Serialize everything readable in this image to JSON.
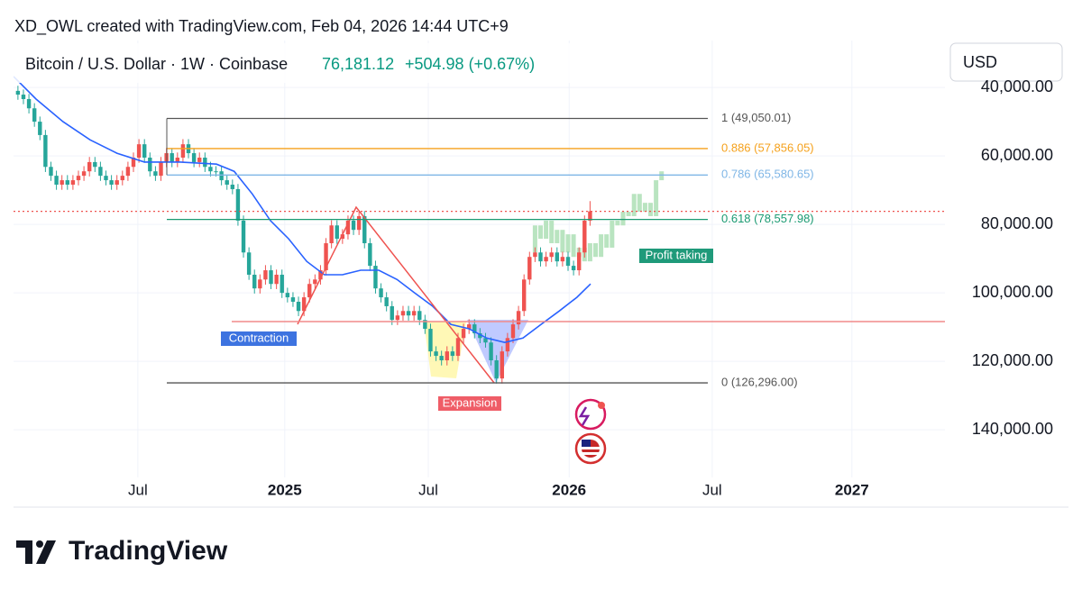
{
  "header": {
    "credit": "XD_OWL created with TradingView.com, Feb 04, 2026 14:44 UTC+9",
    "symbol": "Bitcoin / U.S. Dollar · 1W · Coinbase",
    "price": {
      "value": 76181.12,
      "label": "76,181.12"
    },
    "change": "+504.98 (+0.67%)",
    "currency": "USD"
  },
  "footer": {
    "brand": "TradingView"
  },
  "chart_data": {
    "type": "candlestick",
    "y_inverted": true,
    "grid": true,
    "ylim": [
      26300,
      153900
    ],
    "yticks": [
      {
        "value": 40000,
        "label": "40,000.00"
      },
      {
        "value": 60000,
        "label": "60,000.00"
      },
      {
        "value": 80000,
        "label": "80,000.00"
      },
      {
        "value": 100000,
        "label": "100,000.00"
      },
      {
        "value": 120000,
        "label": "120,000.00"
      },
      {
        "value": 140000,
        "label": "140,000.00"
      }
    ],
    "xlim": [
      -0.8,
      167.2
    ],
    "xticks": [
      {
        "value": 21.8,
        "label": "Jul"
      },
      {
        "value": 48.5,
        "label": "2025"
      },
      {
        "value": 74.6,
        "label": "Jul"
      },
      {
        "value": 100.2,
        "label": "2026"
      },
      {
        "value": 126.2,
        "label": "Jul"
      },
      {
        "value": 151.6,
        "label": "2027"
      }
    ],
    "up_color": "#26a69a",
    "down_color": "#ef5350",
    "open": [
      41000,
      42100,
      43400,
      46100,
      50000,
      53900,
      63200,
      65800,
      68400,
      67100,
      68400,
      67100,
      65800,
      64500,
      61800,
      63200,
      65800,
      67100,
      68400,
      67100,
      65800,
      63200,
      60500,
      56600,
      60500,
      64500,
      65800,
      61800,
      59200,
      61800,
      60500,
      56600,
      59200,
      61800,
      60500,
      63200,
      64500,
      64500,
      67100,
      68400,
      69700,
      78900,
      88200,
      94700,
      98700,
      96100,
      93400,
      97400,
      94700,
      100000,
      101300,
      102600,
      105300,
      101300,
      97400,
      96100,
      93400,
      85500,
      80300,
      84200,
      82900,
      78900,
      81600,
      77600,
      85500,
      92100,
      98700,
      101300,
      103900,
      107900,
      106600,
      105300,
      106600,
      105300,
      107900,
      110500,
      117100,
      118400,
      119700,
      117100,
      118400,
      113200,
      110500,
      109200,
      111800,
      113200,
      114500,
      119700,
      125000,
      117100,
      113200,
      109200,
      105300,
      96100,
      89500,
      88200,
      90800,
      89500,
      88200,
      90800,
      89500,
      92100,
      93400,
      88200,
      78900
    ],
    "high": [
      43600,
      44900,
      47600,
      51500,
      55400,
      64700,
      67300,
      69900,
      69900,
      69900,
      69900,
      68600,
      67300,
      66000,
      64700,
      67300,
      68600,
      69900,
      69900,
      68600,
      67300,
      64700,
      62000,
      62000,
      66000,
      67300,
      67300,
      63300,
      63300,
      63300,
      62000,
      60700,
      63300,
      63300,
      64700,
      66000,
      66000,
      68600,
      69900,
      71200,
      80400,
      89700,
      96200,
      100200,
      100200,
      97600,
      98900,
      98900,
      101500,
      102800,
      104100,
      106800,
      106800,
      102800,
      98900,
      97600,
      94900,
      87000,
      85700,
      85700,
      84400,
      83100,
      83100,
      87000,
      93600,
      100200,
      102800,
      105400,
      109400,
      109400,
      108100,
      108100,
      108100,
      109400,
      112000,
      118600,
      119900,
      121200,
      121200,
      119900,
      119900,
      114700,
      112000,
      113300,
      114700,
      116000,
      121200,
      126500,
      126500,
      118600,
      114700,
      110700,
      106800,
      97600,
      91000,
      92300,
      92300,
      91000,
      92300,
      92300,
      93600,
      94900,
      94900,
      89700,
      80400
    ],
    "low": [
      39500,
      40600,
      41900,
      44600,
      48500,
      52400,
      61700,
      64300,
      65600,
      65600,
      65600,
      64300,
      63000,
      60300,
      60300,
      61700,
      64300,
      65600,
      65600,
      64300,
      61700,
      59000,
      55100,
      55100,
      59000,
      63000,
      60300,
      57700,
      57700,
      59000,
      55100,
      55100,
      57700,
      59000,
      59000,
      61700,
      63000,
      63000,
      65600,
      66900,
      68200,
      77400,
      86700,
      93200,
      94600,
      91900,
      91900,
      93200,
      93200,
      98500,
      99800,
      101100,
      99800,
      95900,
      94600,
      91900,
      84000,
      78800,
      78800,
      81400,
      77400,
      77400,
      76100,
      76100,
      84000,
      90600,
      97200,
      99800,
      102400,
      105100,
      103800,
      103800,
      103800,
      103800,
      106400,
      109000,
      115600,
      116900,
      115600,
      115600,
      111700,
      109000,
      107700,
      107700,
      110300,
      111700,
      113000,
      118200,
      115600,
      111700,
      107700,
      103800,
      94600,
      88000,
      86700,
      86700,
      88000,
      86700,
      86700,
      88000,
      88000,
      90600,
      86700,
      77400,
      73200
    ],
    "close": [
      42100,
      43400,
      46100,
      50000,
      53900,
      63200,
      65800,
      68400,
      67100,
      68400,
      67100,
      65800,
      64500,
      61800,
      63200,
      65800,
      67100,
      68400,
      67100,
      65800,
      63200,
      60500,
      56600,
      60500,
      64500,
      65800,
      61800,
      59200,
      61800,
      60500,
      56600,
      59200,
      61800,
      60500,
      63200,
      64500,
      64500,
      67100,
      68400,
      69700,
      78900,
      88200,
      94700,
      98700,
      96100,
      93400,
      97400,
      94700,
      100000,
      101300,
      102600,
      105300,
      101300,
      97400,
      96100,
      93400,
      85500,
      80300,
      84200,
      82900,
      78900,
      81600,
      77600,
      85500,
      92100,
      98700,
      101300,
      103900,
      107900,
      106600,
      105300,
      106600,
      105300,
      107900,
      110500,
      117100,
      118400,
      119700,
      117100,
      118400,
      113200,
      110500,
      109200,
      111800,
      113200,
      114500,
      119700,
      125000,
      117100,
      113200,
      109200,
      105300,
      96100,
      89500,
      88200,
      90800,
      89500,
      88200,
      90800,
      89500,
      92100,
      93400,
      88200,
      78900,
      76181.12
    ],
    "projection": {
      "color": "#b9e4c0",
      "x": [
        94,
        95,
        96,
        97,
        98,
        99,
        100,
        101,
        102,
        103,
        104,
        105,
        106,
        107,
        108,
        109,
        110,
        111,
        112,
        113,
        114,
        115,
        116,
        117
      ],
      "open": [
        88200,
        80300,
        84200,
        78900,
        85500,
        81600,
        88200,
        82900,
        89500,
        86800,
        90800,
        85500,
        89500,
        82900,
        86800,
        78900,
        80300,
        76300,
        77600,
        71100,
        76300,
        73700,
        77600,
        67100
      ],
      "close": [
        80300,
        84200,
        78900,
        85500,
        81600,
        88200,
        82900,
        89500,
        86800,
        90800,
        85500,
        89500,
        82900,
        86800,
        78900,
        80300,
        76300,
        77600,
        71100,
        76300,
        73700,
        77600,
        67100,
        64500
      ]
    },
    "ma": {
      "color": "#2962ff",
      "x": [
        -0.8,
        3.3,
        8.2,
        13.1,
        18,
        23,
        29.5,
        36.1,
        39.3,
        42.6,
        45.9,
        49.2,
        52.5,
        55.7,
        59,
        62.3,
        65.6,
        68.9,
        72.1,
        75.4,
        78.7,
        82,
        85.2,
        88.5,
        91.8,
        95.1,
        98.4,
        101.6,
        104.1
      ],
      "values": [
        36800,
        43400,
        50000,
        55300,
        59200,
        61800,
        61800,
        62400,
        64500,
        71100,
        78900,
        84200,
        90800,
        94700,
        94700,
        93400,
        93400,
        96100,
        100000,
        103900,
        109200,
        110500,
        113200,
        114500,
        113200,
        109200,
        105300,
        101300,
        97400
      ]
    },
    "fib_levels": [
      {
        "value": 49050.01,
        "label": "1 (49,050.01)",
        "color": "#555555"
      },
      {
        "value": 57856.05,
        "label": "0.886 (57,856.05)",
        "color": "#f5a11c"
      },
      {
        "value": 65580.65,
        "label": "0.786 (65,580.65)",
        "color": "#7fb6e6"
      },
      {
        "value": 78557.98,
        "label": "0.618 (78,557.98)",
        "color": "#1a9a72"
      },
      {
        "value": 126296.0,
        "label": "0 (126,296.00)",
        "color": "#555555"
      }
    ],
    "levels": [
      {
        "value": 108400,
        "color": "#f08a8a"
      }
    ],
    "annotations": [
      {
        "text": "Contraction",
        "color": "#3d73e0"
      },
      {
        "text": "Expansion",
        "color": "#ef5d67"
      },
      {
        "text": "Profit taking",
        "color": "#1f9a7a"
      }
    ]
  }
}
